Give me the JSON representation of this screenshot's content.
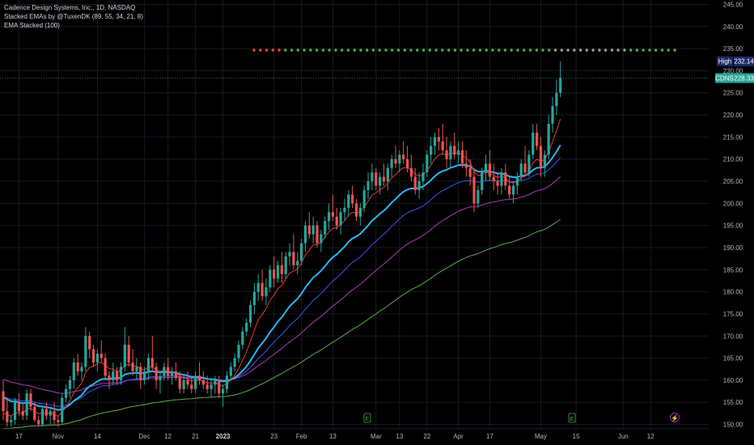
{
  "legend": {
    "title": "Cadence Design Systems, Inc., 1D, NASDAQ",
    "indicator_1": "Stacked EMAs by @TuxenDK (89, 55, 34, 21, 8)",
    "indicator_2": "EMA Stacked (100)"
  },
  "colors": {
    "background": "#000000",
    "grid": "#161a22",
    "up": "#26a69a",
    "down": "#ef5350",
    "ema8": "#e53935",
    "ema21": "#29b6f6",
    "ema34": "#3f51f5",
    "ema55": "#b039b5",
    "ema100": "#5fa84a",
    "dot_green": "#4caf50",
    "dot_red": "#f44336",
    "dot_gray": "#9e9e9e",
    "high_badge": "#1e2a6b",
    "price_badge": "#26a69a"
  },
  "badges": {
    "high_label": "High",
    "high_value": "232.14",
    "symbol": "CDNS",
    "last_value": "228.33"
  },
  "chart_data": {
    "type": "candlestick",
    "y_axis": {
      "range": [
        149,
        246
      ],
      "ticks": [
        "150.00",
        "155.00",
        "160.00",
        "165.00",
        "170.00",
        "175.00",
        "180.00",
        "185.00",
        "190.00",
        "195.00",
        "200.00",
        "205.00",
        "210.00",
        "215.00",
        "220.00",
        "225.00",
        "230.00",
        "235.00",
        "240.00",
        "245.00"
      ]
    },
    "x_axis": {
      "labels": [
        {
          "text": "17",
          "bar": 4,
          "bold": false
        },
        {
          "text": "Nov",
          "bar": 14,
          "bold": false
        },
        {
          "text": "14",
          "bar": 24,
          "bold": false
        },
        {
          "text": "Dec",
          "bar": 36,
          "bold": false
        },
        {
          "text": "12",
          "bar": 42,
          "bold": false
        },
        {
          "text": "21",
          "bar": 49,
          "bold": false
        },
        {
          "text": "2023",
          "bar": 56,
          "bold": true
        },
        {
          "text": "23",
          "bar": 69,
          "bold": false
        },
        {
          "text": "Feb",
          "bar": 76,
          "bold": false
        },
        {
          "text": "13",
          "bar": 84,
          "bold": false
        },
        {
          "text": "Mar",
          "bar": 95,
          "bold": false
        },
        {
          "text": "13",
          "bar": 101,
          "bold": false
        },
        {
          "text": "22",
          "bar": 108,
          "bold": false
        },
        {
          "text": "Apr",
          "bar": 116,
          "bold": false
        },
        {
          "text": "17",
          "bar": 124,
          "bold": false
        },
        {
          "text": "May",
          "bar": 137,
          "bold": false
        },
        {
          "text": "15",
          "bar": 146,
          "bold": false
        },
        {
          "text": "Jun",
          "bar": 158,
          "bold": false
        },
        {
          "text": "12",
          "bar": 165,
          "bold": false
        }
      ]
    },
    "ohlc": [
      [
        157.5,
        160,
        151,
        153
      ],
      [
        153,
        156,
        149.5,
        150.5
      ],
      [
        150.5,
        152,
        149.5,
        151
      ],
      [
        151,
        156,
        150,
        155
      ],
      [
        155,
        157,
        152,
        153
      ],
      [
        153,
        154.5,
        151,
        152
      ],
      [
        152,
        158,
        151,
        157
      ],
      [
        157,
        158,
        153,
        154
      ],
      [
        154,
        155,
        150.5,
        151
      ],
      [
        151,
        152,
        149.5,
        150
      ],
      [
        150,
        154,
        149.5,
        153.5
      ],
      [
        153.5,
        155,
        151,
        152
      ],
      [
        152,
        154,
        150,
        153
      ],
      [
        153,
        155,
        150,
        151
      ],
      [
        151,
        152,
        149.5,
        150.5
      ],
      [
        150.5,
        157,
        150,
        156
      ],
      [
        156,
        159,
        155,
        158
      ],
      [
        158,
        161,
        156,
        160
      ],
      [
        160,
        165,
        158,
        164
      ],
      [
        164,
        166,
        161,
        162
      ],
      [
        162,
        164,
        160,
        163
      ],
      [
        163,
        172,
        162,
        170
      ],
      [
        170,
        171,
        165,
        167
      ],
      [
        167,
        168,
        163,
        164
      ],
      [
        164,
        167,
        162,
        166
      ],
      [
        166,
        169,
        164,
        165
      ],
      [
        165,
        166,
        160,
        161
      ],
      [
        161,
        162,
        158,
        160
      ],
      [
        160,
        164,
        159,
        162
      ],
      [
        162,
        163,
        159,
        160
      ],
      [
        160,
        164,
        159,
        163
      ],
      [
        163,
        172,
        162,
        168
      ],
      [
        168,
        170,
        163,
        164
      ],
      [
        164,
        167,
        161,
        162
      ],
      [
        162,
        165,
        160,
        163
      ],
      [
        163,
        164,
        158,
        160
      ],
      [
        160,
        163,
        159,
        162
      ],
      [
        162,
        166,
        160,
        165
      ],
      [
        165,
        170,
        162,
        163
      ],
      [
        163,
        164,
        158,
        160
      ],
      [
        160,
        162,
        157,
        161
      ],
      [
        161,
        164,
        160,
        163
      ],
      [
        163,
        165,
        160,
        161
      ],
      [
        161,
        163,
        159,
        162
      ],
      [
        162,
        164,
        160,
        160.5
      ],
      [
        160.5,
        162,
        157,
        158
      ],
      [
        158,
        161,
        157,
        160
      ],
      [
        160,
        162,
        158,
        159
      ],
      [
        159,
        161,
        157,
        158
      ],
      [
        158,
        162,
        157,
        161
      ],
      [
        161,
        164,
        159,
        160
      ],
      [
        160,
        162,
        158,
        159
      ],
      [
        159,
        161,
        157,
        158
      ],
      [
        158,
        160,
        156,
        159
      ],
      [
        159,
        161,
        157,
        160
      ],
      [
        160,
        161,
        156,
        157
      ],
      [
        157,
        159,
        154,
        158
      ],
      [
        158,
        162,
        157,
        161
      ],
      [
        161,
        164,
        160,
        163
      ],
      [
        163,
        166,
        162,
        165
      ],
      [
        165,
        169,
        164,
        168
      ],
      [
        168,
        172,
        167,
        171
      ],
      [
        171,
        174,
        170,
        173
      ],
      [
        173,
        178,
        172,
        177
      ],
      [
        177,
        182,
        175,
        180
      ],
      [
        180,
        184,
        178,
        182
      ],
      [
        182,
        185,
        178,
        179
      ],
      [
        179,
        183,
        177,
        181
      ],
      [
        181,
        186,
        180,
        185
      ],
      [
        185,
        188,
        181,
        183
      ],
      [
        183,
        187,
        182,
        186
      ],
      [
        186,
        189,
        182,
        184
      ],
      [
        184,
        189,
        183,
        188
      ],
      [
        188,
        191,
        186,
        189
      ],
      [
        189,
        193,
        185,
        186
      ],
      [
        186,
        189,
        184,
        187
      ],
      [
        187,
        192,
        186,
        191
      ],
      [
        191,
        196,
        189,
        195
      ],
      [
        195,
        198,
        192,
        193
      ],
      [
        193,
        197,
        191,
        195
      ],
      [
        195,
        196,
        190,
        191
      ],
      [
        191,
        194,
        189,
        193
      ],
      [
        193,
        197,
        192,
        196
      ],
      [
        196,
        200,
        194,
        198
      ],
      [
        198,
        202,
        196,
        197
      ],
      [
        197,
        199,
        194,
        195
      ],
      [
        195,
        199,
        193,
        198
      ],
      [
        198,
        201,
        196,
        199
      ],
      [
        199,
        203,
        197,
        202
      ],
      [
        202,
        204,
        199,
        200
      ],
      [
        200,
        201,
        196,
        197
      ],
      [
        197,
        200,
        195,
        199
      ],
      [
        199,
        204,
        198,
        203
      ],
      [
        203,
        207,
        201,
        205
      ],
      [
        205,
        209,
        203,
        207
      ],
      [
        207,
        208,
        203,
        204
      ],
      [
        204,
        207,
        202,
        206
      ],
      [
        206,
        209,
        204,
        205
      ],
      [
        205,
        209,
        203,
        208
      ],
      [
        208,
        211,
        206,
        210
      ],
      [
        210,
        213,
        208,
        209
      ],
      [
        209,
        212,
        207,
        211
      ],
      [
        211,
        214,
        209,
        210
      ],
      [
        210,
        213,
        207,
        208
      ],
      [
        208,
        211,
        205,
        206
      ],
      [
        206,
        208,
        202,
        203
      ],
      [
        203,
        207,
        201,
        205
      ],
      [
        205,
        209,
        203,
        207
      ],
      [
        207,
        212,
        206,
        211
      ],
      [
        211,
        215,
        209,
        213
      ],
      [
        213,
        216,
        211,
        215
      ],
      [
        215,
        217,
        212,
        214
      ],
      [
        214,
        218,
        211,
        212
      ],
      [
        212,
        215,
        208,
        210
      ],
      [
        210,
        214,
        208,
        213
      ],
      [
        213,
        216,
        210,
        211
      ],
      [
        211,
        214,
        209,
        212
      ],
      [
        212,
        214,
        208,
        209
      ],
      [
        209,
        212,
        206,
        208
      ],
      [
        208,
        210,
        204,
        206
      ],
      [
        206,
        208,
        198,
        200
      ],
      [
        200,
        204,
        199,
        203
      ],
      [
        203,
        208,
        202,
        207
      ],
      [
        207,
        211,
        205,
        209
      ],
      [
        209,
        212,
        205,
        206
      ],
      [
        206,
        209,
        203,
        205
      ],
      [
        205,
        207,
        202,
        204
      ],
      [
        204,
        208,
        202,
        207
      ],
      [
        207,
        209,
        203,
        204
      ],
      [
        204,
        206,
        201,
        202
      ],
      [
        202,
        205,
        200,
        204
      ],
      [
        204,
        207,
        202,
        206
      ],
      [
        206,
        210,
        205,
        209
      ],
      [
        209,
        213,
        206,
        207
      ],
      [
        207,
        212,
        206,
        211
      ],
      [
        211,
        218,
        210,
        216
      ],
      [
        216,
        218,
        212,
        213
      ],
      [
        213,
        215,
        206,
        208
      ],
      [
        208,
        212,
        206,
        211
      ],
      [
        211,
        220,
        210,
        218
      ],
      [
        218,
        224,
        216,
        222
      ],
      [
        222,
        228,
        220,
        225
      ],
      [
        225,
        232.14,
        224,
        228.33
      ]
    ],
    "ema_periods": [
      8,
      21,
      34,
      55,
      100
    ],
    "stacked_dots": {
      "count": 68,
      "red_indices": [
        0,
        1,
        2,
        3,
        4
      ],
      "gray_indices": [
        48,
        49,
        50,
        51,
        52,
        53,
        54,
        55,
        56,
        57,
        58,
        59
      ]
    },
    "event_markers": [
      "E",
      "E"
    ],
    "lightning_marker": "⚡",
    "high": 232.14,
    "last": 228.33
  }
}
